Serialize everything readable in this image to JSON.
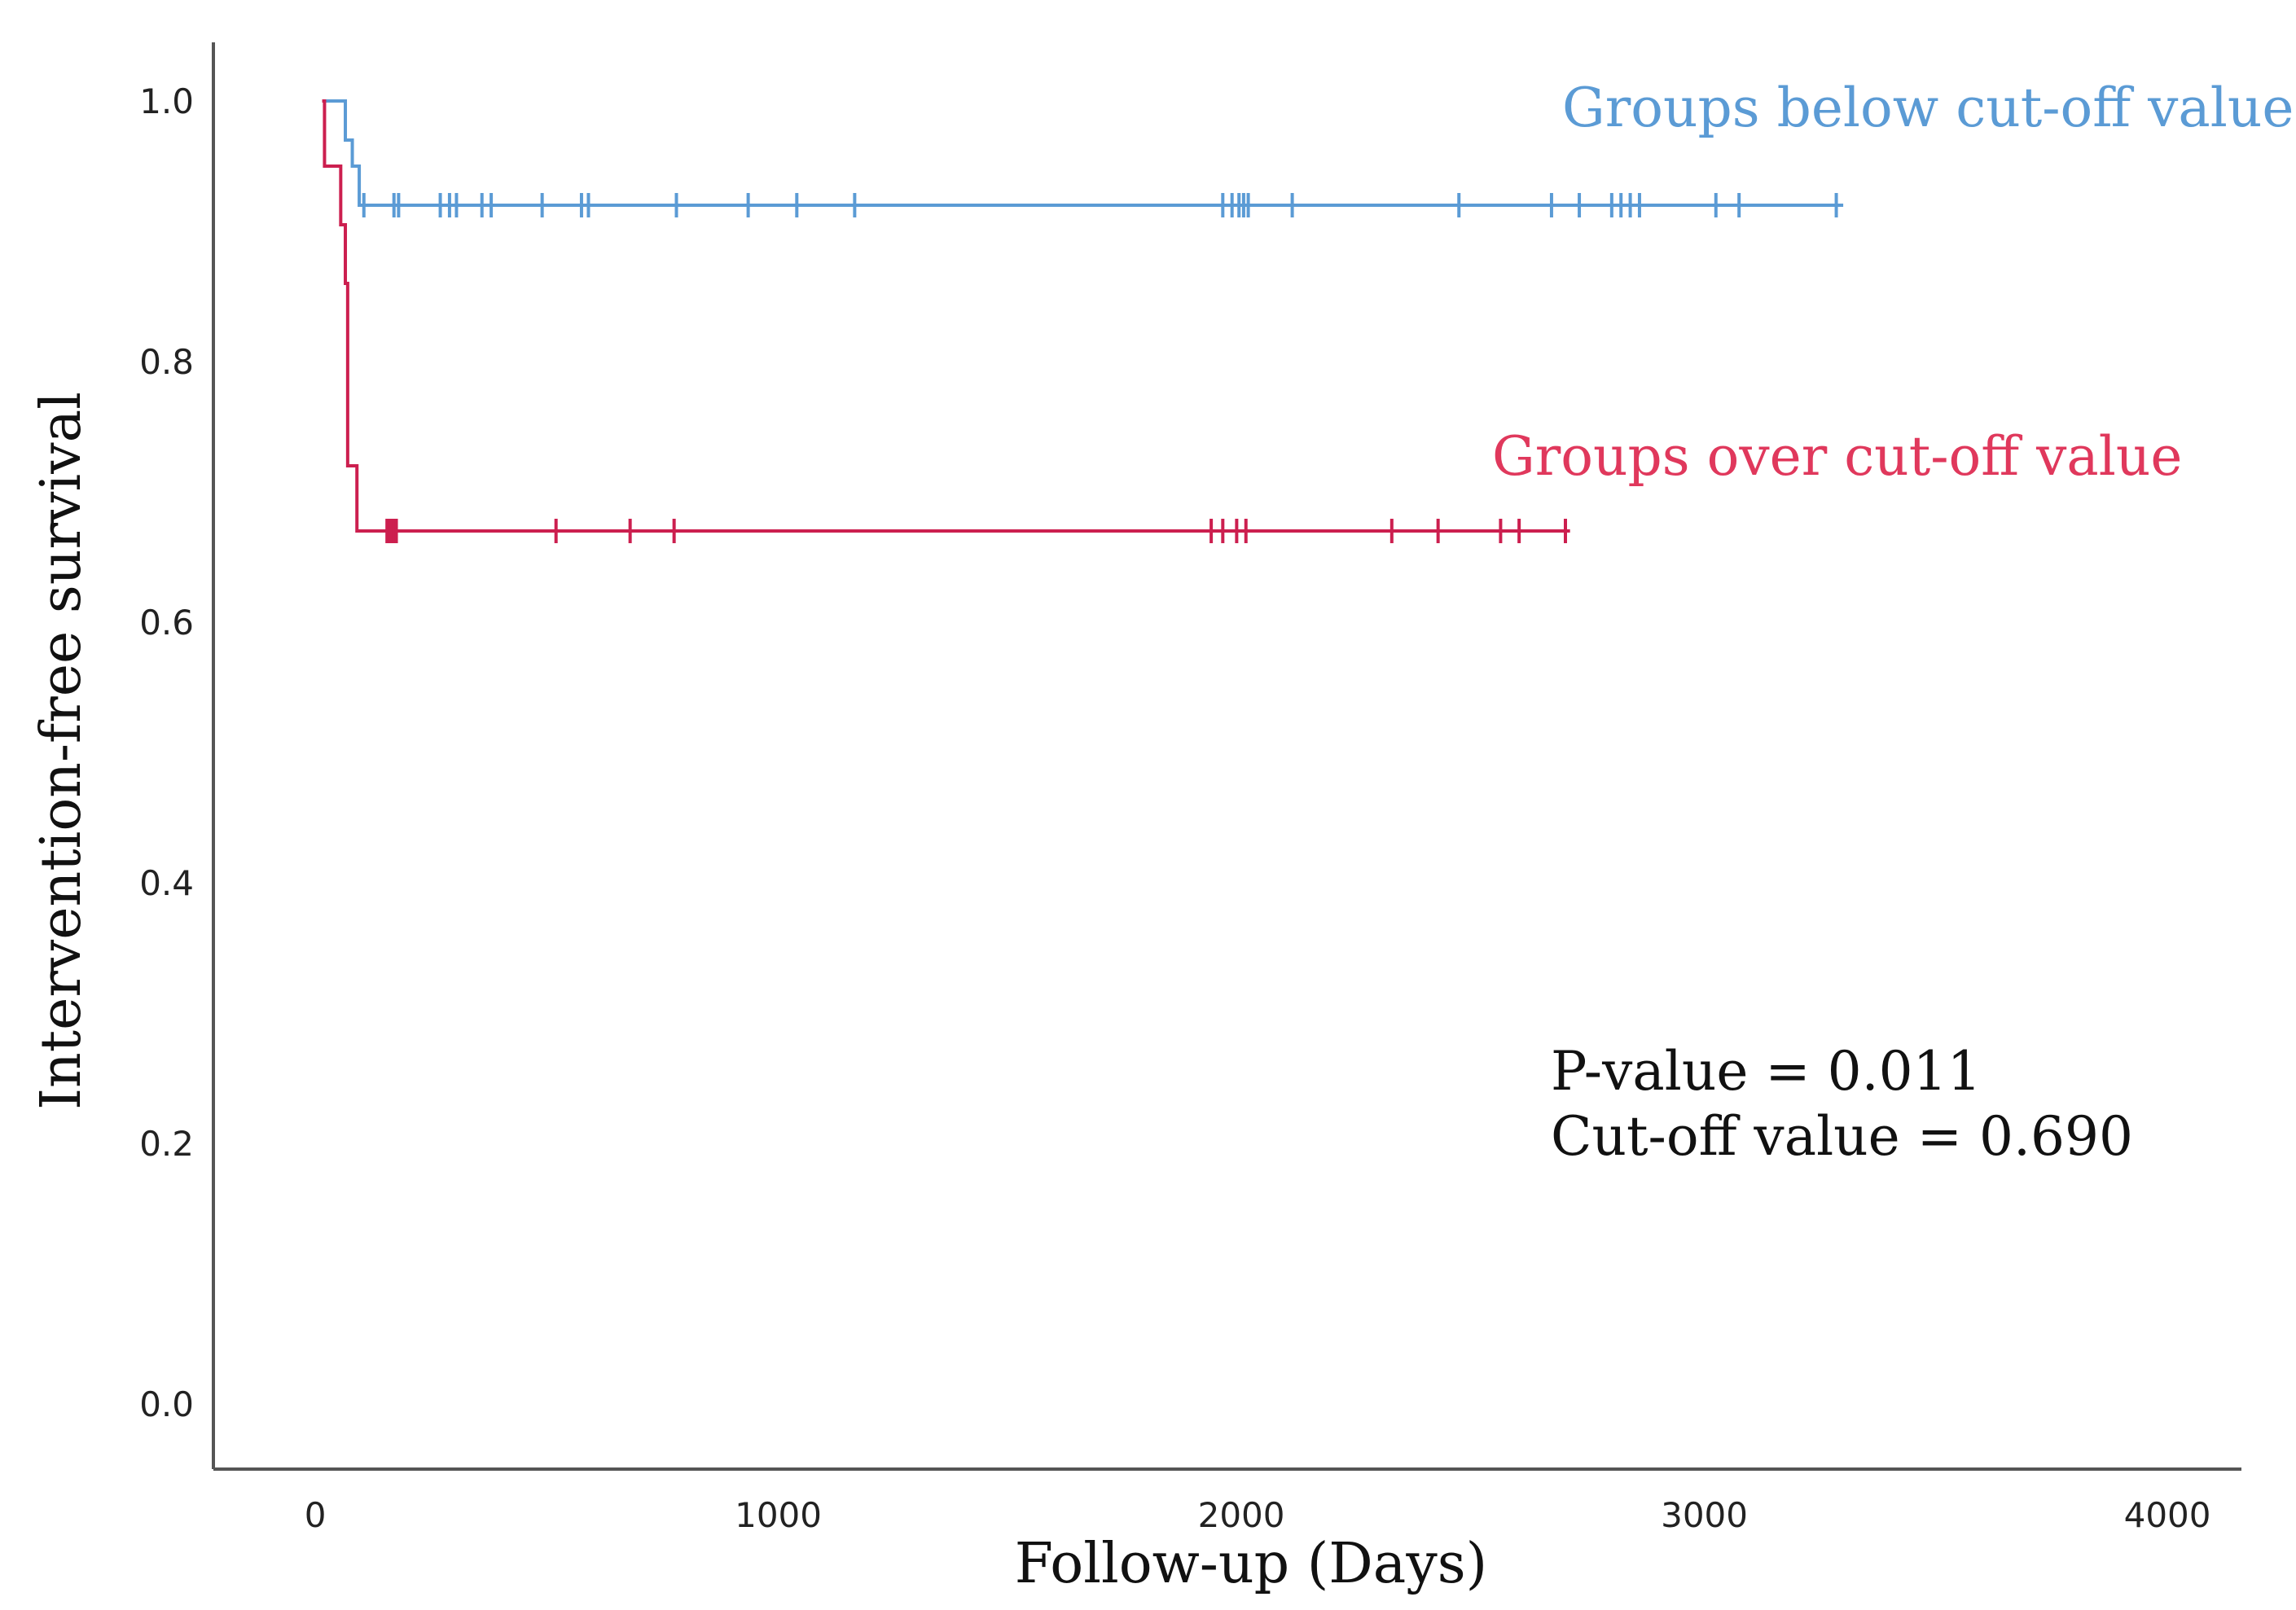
{
  "chart_data": {
    "type": "line",
    "subtype": "kaplan-meier-step",
    "title": "",
    "xlabel": "Follow-up (Days)",
    "ylabel": "Intervention-free survival",
    "xlim": [
      -220,
      4160
    ],
    "ylim": [
      -0.05,
      1.045
    ],
    "xticks": [
      0,
      1000,
      2000,
      3000,
      4000
    ],
    "xtick_labels": [
      "0",
      "1000",
      "2000",
      "3000",
      "4000"
    ],
    "yticks": [
      0.0,
      0.2,
      0.4,
      0.6,
      0.8,
      1.0
    ],
    "ytick_labels": [
      "0.0",
      "0.2",
      "0.4",
      "0.6",
      "0.8",
      "1.0"
    ],
    "grid": false,
    "series": [
      {
        "name": "Groups below cut-off value",
        "color": "#5b9bd5",
        "steps": [
          [
            15,
            1.0
          ],
          [
            65,
            0.97
          ],
          [
            80,
            0.95
          ],
          [
            95,
            0.92
          ],
          [
            3300,
            0.92
          ]
        ],
        "censored": [
          [
            105,
            0.92
          ],
          [
            170,
            0.92
          ],
          [
            180,
            0.92
          ],
          [
            270,
            0.92
          ],
          [
            290,
            0.92
          ],
          [
            305,
            0.92
          ],
          [
            360,
            0.92
          ],
          [
            380,
            0.92
          ],
          [
            490,
            0.92
          ],
          [
            575,
            0.92
          ],
          [
            590,
            0.92
          ],
          [
            780,
            0.92
          ],
          [
            935,
            0.92
          ],
          [
            1040,
            0.92
          ],
          [
            1165,
            0.92
          ],
          [
            1960,
            0.92
          ],
          [
            1980,
            0.92
          ],
          [
            1995,
            0.92
          ],
          [
            2005,
            0.92
          ],
          [
            2015,
            0.92
          ],
          [
            2110,
            0.92
          ],
          [
            2470,
            0.92
          ],
          [
            2670,
            0.92
          ],
          [
            2730,
            0.92
          ],
          [
            2800,
            0.92
          ],
          [
            2820,
            0.92
          ],
          [
            2840,
            0.92
          ],
          [
            2860,
            0.92
          ],
          [
            3025,
            0.92
          ],
          [
            3075,
            0.92
          ],
          [
            3285,
            0.92
          ]
        ]
      },
      {
        "name": "Groups over cut-off value",
        "color": "#cc1f4f",
        "steps": [
          [
            15,
            1.0
          ],
          [
            20,
            0.95
          ],
          [
            55,
            0.905
          ],
          [
            65,
            0.86
          ],
          [
            70,
            0.72
          ],
          [
            90,
            0.67
          ],
          [
            2710,
            0.67
          ]
        ],
        "censored": [
          [
            155,
            0.67
          ],
          [
            160,
            0.67
          ],
          [
            165,
            0.67
          ],
          [
            170,
            0.67
          ],
          [
            175,
            0.67
          ],
          [
            520,
            0.67
          ],
          [
            680,
            0.67
          ],
          [
            775,
            0.67
          ],
          [
            1935,
            0.67
          ],
          [
            1960,
            0.67
          ],
          [
            1990,
            0.67
          ],
          [
            2010,
            0.67
          ],
          [
            2325,
            0.67
          ],
          [
            2425,
            0.67
          ],
          [
            2560,
            0.67
          ],
          [
            2600,
            0.67
          ],
          [
            2700,
            0.67
          ]
        ]
      }
    ],
    "legend": [
      {
        "label": "Groups below cut-off value",
        "color": "#5b9bd5",
        "placement": "top-right"
      },
      {
        "label": "Groups over cut-off value",
        "color": "#e0385c",
        "placement": "upper-middle-right"
      }
    ],
    "annotations": [
      {
        "label": "P-value = 0.011"
      },
      {
        "label": "Cut-off value = 0.690"
      }
    ]
  }
}
